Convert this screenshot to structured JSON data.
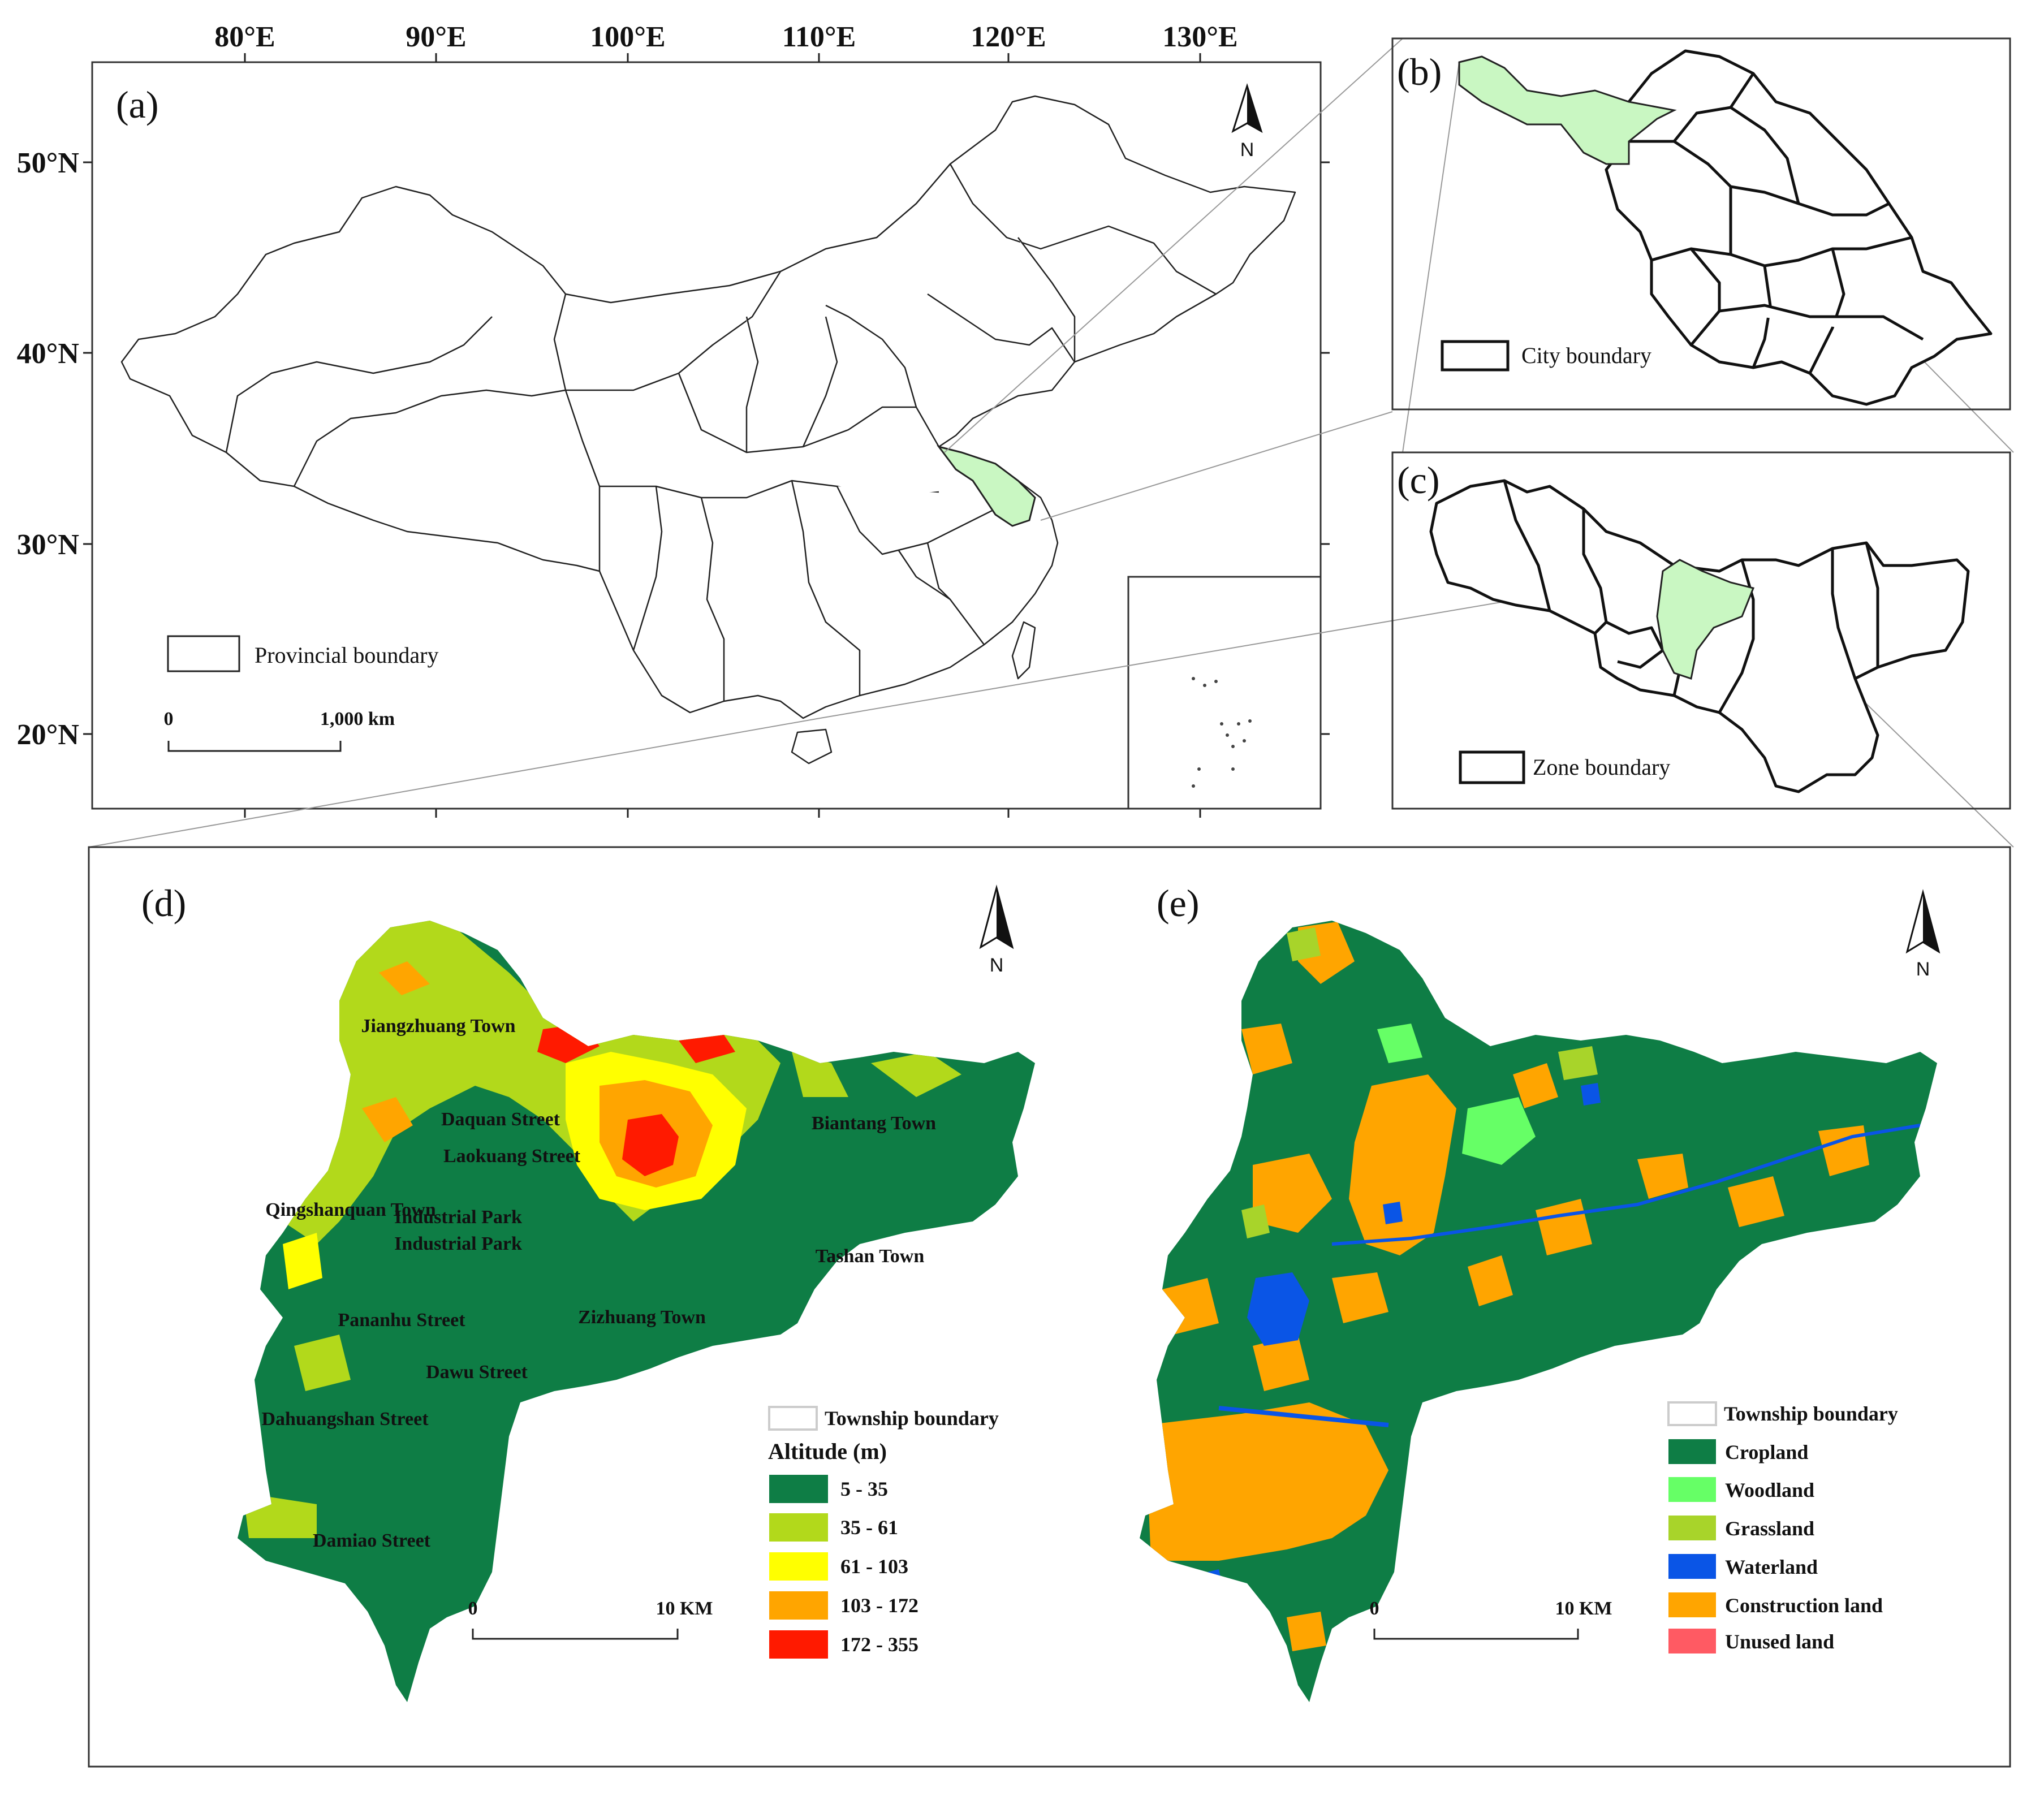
{
  "panel_a": {
    "label": "(a)",
    "lon_ticks": [
      "80°E",
      "90°E",
      "100°E",
      "110°E",
      "120°E",
      "130°E"
    ],
    "lat_ticks": [
      "50°N",
      "40°N",
      "30°N",
      "20°N"
    ],
    "legend": "Provincial boundary",
    "scale": {
      "zero": "0",
      "end": "1,000 km"
    },
    "north": "N"
  },
  "panel_b": {
    "label": "(b)",
    "legend": "City boundary"
  },
  "panel_c": {
    "label": "(c)",
    "legend": "Zone boundary"
  },
  "panel_d": {
    "label": "(d)",
    "north": "N",
    "towns": [
      "Jiangzhuang Town",
      "Daquan Street",
      "Laokuang Street",
      "Biantang Town",
      "Qingshanquan Town",
      "Industrial Park",
      "Industrial Park",
      "Tashan Town",
      "Pananhu Street",
      "Zizhuang Town",
      "Dawu Street",
      "Dahuangshan Street",
      "Damiao Street"
    ],
    "legend_boundary": "Township boundary",
    "legend_title": "Altitude (m)",
    "classes": [
      {
        "label": "5 - 35",
        "color": "#0e7d45"
      },
      {
        "label": "35 - 61",
        "color": "#b2d91b"
      },
      {
        "label": "61 - 103",
        "color": "#ffff00"
      },
      {
        "label": "103 - 172",
        "color": "#ffa500"
      },
      {
        "label": "172 - 355",
        "color": "#ff1a00"
      }
    ],
    "scale": {
      "zero": "0",
      "end": "10 KM"
    }
  },
  "panel_e": {
    "label": "(e)",
    "north": "N",
    "legend_boundary": "Township boundary",
    "classes": [
      {
        "label": "Cropland",
        "color": "#0e7d45"
      },
      {
        "label": "Woodland",
        "color": "#66ff66"
      },
      {
        "label": "Grassland",
        "color": "#a8d42a"
      },
      {
        "label": "Waterland",
        "color": "#0a55e6"
      },
      {
        "label": "Construction land",
        "color": "#ffa500"
      },
      {
        "label": "Unused land",
        "color": "#ff5a63"
      }
    ],
    "scale": {
      "zero": "0",
      "end": "10 KM"
    }
  }
}
